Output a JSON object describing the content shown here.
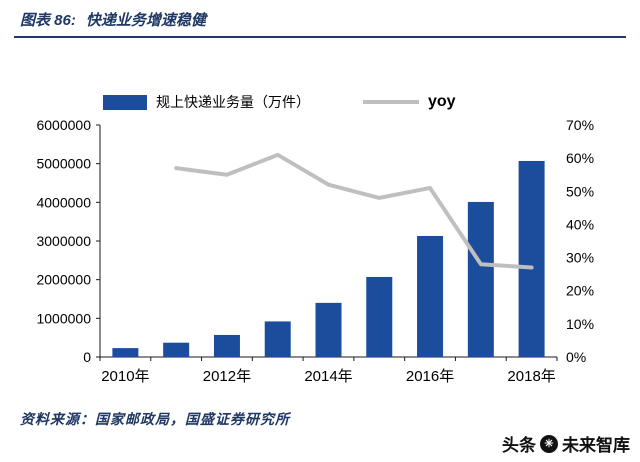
{
  "header": {
    "chart_label": "图表 86:",
    "title": "快递业务增速稳健"
  },
  "legend": {
    "bar_label": "规上快递业务量（万件）",
    "line_label": "yoy"
  },
  "source": {
    "label": "资料来源：国家邮政局，国盛证券研究所"
  },
  "watermark": {
    "left": "头条",
    "icon_glyph": "✳",
    "right": "未来智库"
  },
  "colors": {
    "bar": "#1c4c9c",
    "line": "#bfbfbf",
    "navy": "#1f3864",
    "axis_text": "#000000"
  },
  "chart_data": {
    "type": "bar",
    "title": "快递业务增速稳健",
    "categories": [
      "2010",
      "2011",
      "2012",
      "2013",
      "2014",
      "2015",
      "2016",
      "2017",
      "2018"
    ],
    "x_tick_labels": [
      {
        "label": "2010年",
        "index": 0
      },
      {
        "label": "2012年",
        "index": 2
      },
      {
        "label": "2014年",
        "index": 4
      },
      {
        "label": "2016年",
        "index": 6
      },
      {
        "label": "2018年",
        "index": 8
      }
    ],
    "series": [
      {
        "name": "规上快递业务量（万件）",
        "type": "bar",
        "axis": "left",
        "values": [
          230000,
          370000,
          570000,
          920000,
          1400000,
          2070000,
          3130000,
          4010000,
          5070000
        ]
      },
      {
        "name": "yoy",
        "type": "line",
        "axis": "right",
        "values": [
          null,
          57,
          55,
          61,
          52,
          48,
          51,
          28,
          27
        ]
      }
    ],
    "left_axis": {
      "min": 0,
      "max": 6000000,
      "step": 1000000
    },
    "right_axis": {
      "min": 0,
      "max": 70,
      "step": 10,
      "suffix": "%"
    },
    "grid": false,
    "legend_position": "top"
  }
}
